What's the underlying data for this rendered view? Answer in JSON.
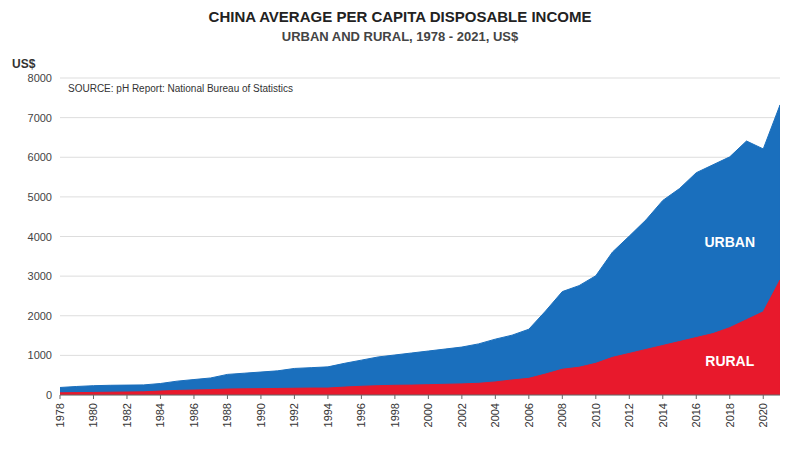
{
  "chart_data": {
    "type": "area",
    "title": "CHINA AVERAGE PER CAPITA DISPOSABLE INCOME",
    "subtitle": "URBAN AND RURAL, 1978 - 2021, US$",
    "y_label": "US$",
    "annotation": "SOURCE: pH Report: National Bureau of Statistics",
    "x": [
      1978,
      1979,
      1980,
      1981,
      1982,
      1983,
      1984,
      1985,
      1986,
      1987,
      1988,
      1989,
      1990,
      1991,
      1992,
      1993,
      1994,
      1995,
      1996,
      1997,
      1998,
      1999,
      2000,
      2001,
      2002,
      2003,
      2004,
      2005,
      2006,
      2007,
      2008,
      2009,
      2010,
      2011,
      2012,
      2013,
      2014,
      2015,
      2016,
      2017,
      2018,
      2019,
      2020,
      2021
    ],
    "series": [
      {
        "name": "URBAN",
        "color": "#1a6fbd",
        "values": [
          190,
          215,
          235,
          245,
          250,
          255,
          290,
          350,
          390,
          430,
          520,
          550,
          580,
          610,
          670,
          690,
          710,
          800,
          880,
          960,
          1010,
          1060,
          1110,
          1160,
          1210,
          1290,
          1410,
          1510,
          1660,
          2120,
          2610,
          2760,
          3010,
          3610,
          4010,
          4420,
          4910,
          5210,
          5610,
          5810,
          6010,
          6410,
          6210,
          7320
        ]
      },
      {
        "name": "RURAL",
        "color": "#e8192c",
        "values": [
          55,
          60,
          65,
          70,
          75,
          80,
          100,
          115,
          125,
          135,
          150,
          155,
          160,
          165,
          170,
          175,
          175,
          200,
          220,
          235,
          245,
          250,
          260,
          270,
          280,
          295,
          330,
          380,
          420,
          530,
          650,
          700,
          800,
          950,
          1050,
          1150,
          1250,
          1350,
          1450,
          1550,
          1700,
          1900,
          2100,
          2900
        ]
      }
    ],
    "xlim": [
      1978,
      2021
    ],
    "xticks": [
      1978,
      1980,
      1982,
      1984,
      1986,
      1988,
      1990,
      1992,
      1994,
      1996,
      1998,
      2000,
      2002,
      2004,
      2006,
      2008,
      2010,
      2012,
      2014,
      2016,
      2018,
      2020
    ],
    "ylim": [
      0,
      8000
    ],
    "yticks": [
      0,
      1000,
      2000,
      3000,
      4000,
      5000,
      6000,
      7000,
      8000
    ],
    "grid": true
  }
}
